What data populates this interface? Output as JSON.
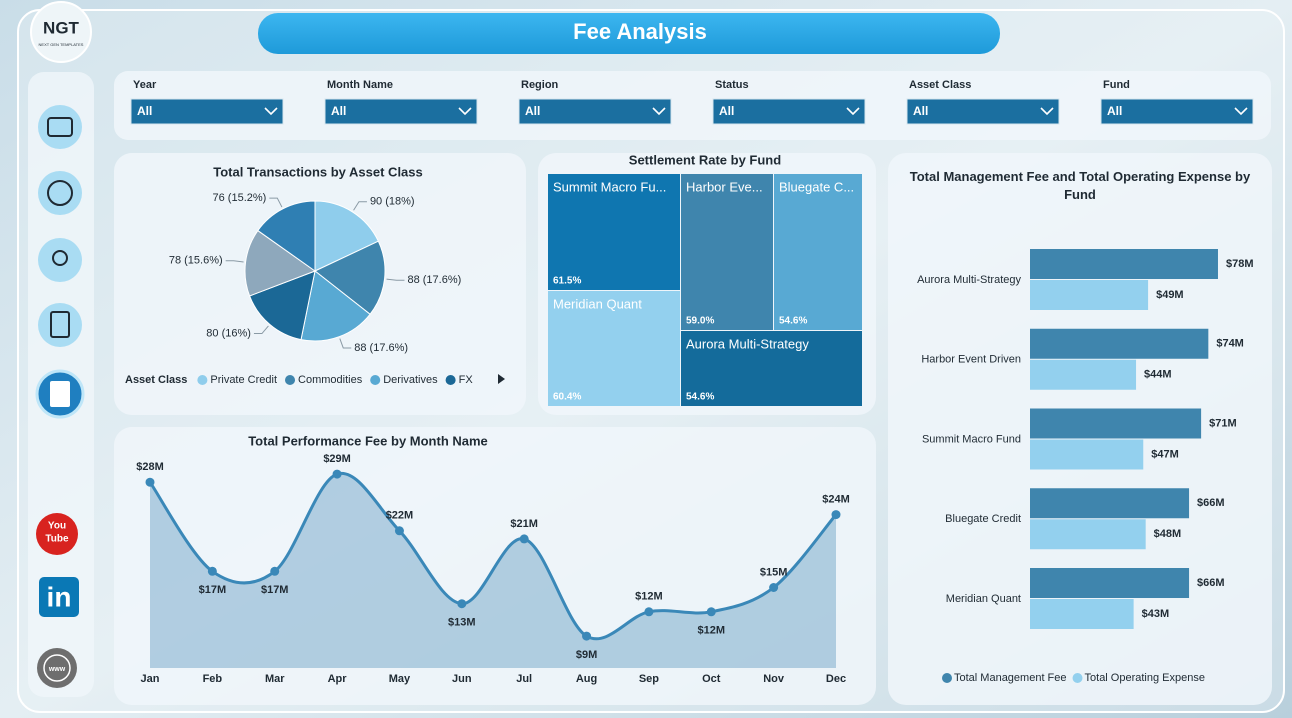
{
  "header": {
    "title": "Fee Analysis",
    "logo": "NGT",
    "logo_subtext": "NEXT GEN TEMPLATES"
  },
  "sidebar": {
    "youtube": [
      "You",
      "Tube"
    ],
    "linkedin": "in",
    "web": "www"
  },
  "filters": [
    {
      "label": "Year",
      "value": "All"
    },
    {
      "label": "Month Name",
      "value": "All"
    },
    {
      "label": "Region",
      "value": "All"
    },
    {
      "label": "Status",
      "value": "All"
    },
    {
      "label": "Asset Class",
      "value": "All"
    },
    {
      "label": "Fund",
      "value": "All"
    }
  ],
  "chart_data": [
    {
      "type": "pie",
      "title": "Total Transactions by Asset Class",
      "legend_title": "Asset Class",
      "categories": [
        "Private Credit",
        "Commodities",
        "Derivatives",
        "FX",
        null,
        null
      ],
      "values": [
        90,
        88,
        88,
        80,
        78,
        76
      ],
      "value_labels": [
        "90 (18%)",
        "88 (17.6%)",
        "88 (17.6%)",
        "80 (16%)",
        "78 (15.6%)",
        "76 (15.2%)"
      ],
      "colors": [
        "#8fcdec",
        "#3f85ad",
        "#58a9d3",
        "#1b6896",
        "#8ea8bc",
        "#2f7fb3"
      ]
    },
    {
      "type": "treemap",
      "title": "Settlement Rate by Fund",
      "categories": [
        "Summit Macro Fu...",
        "Harbor Eve...",
        "Bluegate C...",
        "Meridian Quant",
        "Aurora Multi-Strategy"
      ],
      "values": [
        61.5,
        59.0,
        54.6,
        60.4,
        54.6
      ],
      "value_labels": [
        "61.5%",
        "59.0%",
        "54.6%",
        "60.4%",
        "54.6%"
      ],
      "colors": [
        "#0f76b0",
        "#3f85ad",
        "#58a9d3",
        "#93d0ee",
        "#146b9b"
      ]
    },
    {
      "type": "bar",
      "orientation": "horizontal",
      "title": "Total Management Fee and Total Operating Expense by Fund",
      "categories": [
        "Aurora Multi-Strategy",
        "Harbor Event Driven",
        "Summit Macro Fund",
        "Bluegate Credit",
        "Meridian Quant"
      ],
      "series": [
        {
          "name": "Total Management Fee",
          "color": "#3f85ad",
          "values": [
            78,
            74,
            71,
            66,
            66
          ],
          "value_labels": [
            "$78M",
            "$74M",
            "$71M",
            "$66M",
            "$66M"
          ]
        },
        {
          "name": "Total Operating Expense",
          "color": "#93d0ee",
          "values": [
            49,
            44,
            47,
            48,
            43
          ],
          "value_labels": [
            "$49M",
            "$44M",
            "$47M",
            "$48M",
            "$43M"
          ]
        }
      ]
    },
    {
      "type": "area",
      "title": "Total Performance Fee by Month Name",
      "categories": [
        "Jan",
        "Feb",
        "Mar",
        "Apr",
        "May",
        "Jun",
        "Jul",
        "Aug",
        "Sep",
        "Oct",
        "Nov",
        "Dec"
      ],
      "values": [
        28,
        17,
        17,
        29,
        22,
        13,
        21,
        9,
        12,
        12,
        15,
        24
      ],
      "value_labels": [
        "$28M",
        "$17M",
        "$17M",
        "$29M",
        "$22M",
        "$13M",
        "$21M",
        "$9M",
        "$12M",
        "$12M",
        "$15M",
        "$24M"
      ],
      "color": "#3a88b8"
    }
  ]
}
